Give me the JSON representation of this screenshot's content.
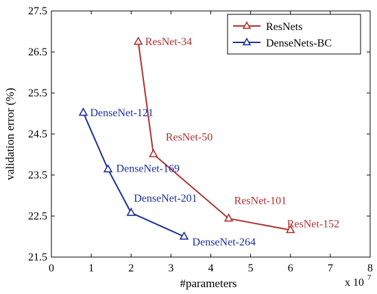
{
  "chart_data": {
    "type": "line",
    "xlabel": "#parameters",
    "ylabel": "validation error (%)",
    "x_scale_label": "x 10",
    "x_scale_exponent": "7",
    "xlim": [
      0,
      8
    ],
    "ylim": [
      21.5,
      27.5
    ],
    "x_ticks": [
      "0",
      "1",
      "2",
      "3",
      "4",
      "5",
      "6",
      "7",
      "8"
    ],
    "y_ticks": [
      "21.5",
      "22.5",
      "23.5",
      "24.5",
      "25.5",
      "26.5",
      "27.5"
    ],
    "grid": false,
    "legend_position": "top-right",
    "series": [
      {
        "name": "ResNets",
        "color": "#b03030",
        "marker": "triangle",
        "points": [
          {
            "x": 2.18,
            "y": 26.75,
            "label": "ResNet-34"
          },
          {
            "x": 2.56,
            "y": 24.01,
            "label": "ResNet-50"
          },
          {
            "x": 4.45,
            "y": 22.44,
            "label": "ResNet-101"
          },
          {
            "x": 6.0,
            "y": 22.16,
            "label": "ResNet-152"
          }
        ]
      },
      {
        "name": "DenseNets-BC",
        "color": "#1c2f9a",
        "marker": "triangle",
        "points": [
          {
            "x": 0.8,
            "y": 25.02,
            "label": "DenseNet-121"
          },
          {
            "x": 1.42,
            "y": 23.64,
            "label": "DenseNet-169"
          },
          {
            "x": 2.0,
            "y": 22.58,
            "label": "DenseNet-201"
          },
          {
            "x": 3.33,
            "y": 22.0,
            "label": "DenseNet-264"
          }
        ]
      }
    ]
  }
}
